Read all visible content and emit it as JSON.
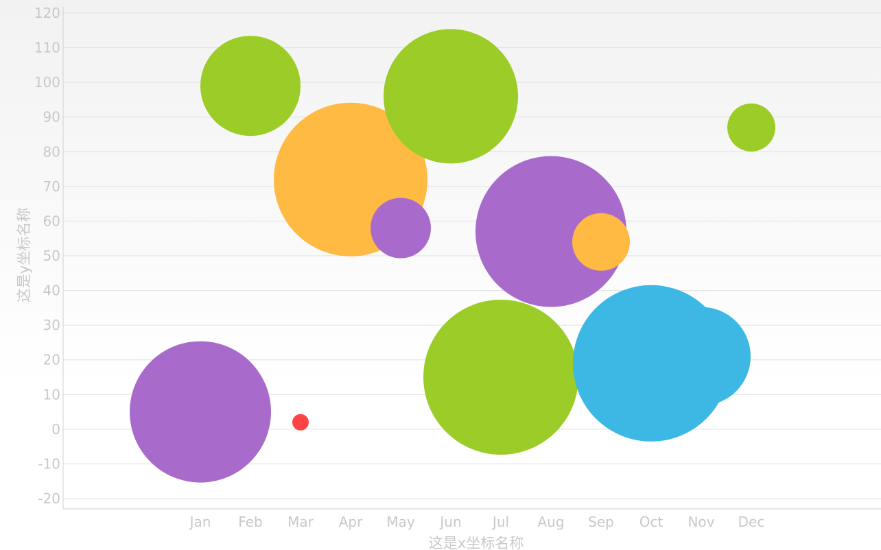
{
  "chart_data": {
    "type": "scatter",
    "subtype": "bubble",
    "xlabel": "这是x坐标名称",
    "ylabel": "这是y坐标名称",
    "categories": [
      "Jan",
      "Feb",
      "Mar",
      "Apr",
      "May",
      "Jun",
      "Jul",
      "Aug",
      "Sep",
      "Oct",
      "Nov",
      "Dec"
    ],
    "ylim": [
      -20,
      120
    ],
    "yticks": [
      -20,
      -10,
      0,
      10,
      20,
      30,
      40,
      50,
      60,
      70,
      80,
      90,
      100,
      110,
      120
    ],
    "grid": true,
    "legend": "none",
    "bubbles": [
      {
        "x": "Jan",
        "y": 5,
        "size": 103,
        "color": "#a86bcb"
      },
      {
        "x": "Feb",
        "y": 99,
        "size": 73,
        "color": "#9ccc27"
      },
      {
        "x": "Mar",
        "y": 2,
        "size": 12,
        "color": "#fe4444"
      },
      {
        "x": "Apr",
        "y": 72,
        "size": 112,
        "color": "#feba43"
      },
      {
        "x": "May",
        "y": 58,
        "size": 44,
        "color": "#a86bcb"
      },
      {
        "x": "Jun",
        "y": 96,
        "size": 98,
        "color": "#9ccc27"
      },
      {
        "x": "Jul",
        "y": 15,
        "size": 113,
        "color": "#9ccc27"
      },
      {
        "x": "Aug",
        "y": 57,
        "size": 110,
        "color": "#a86bcb"
      },
      {
        "x": "Sep",
        "y": 54,
        "size": 42,
        "color": "#feba43"
      },
      {
        "x": "Nov",
        "y": 21,
        "size": 72,
        "color": "#3db8e4"
      },
      {
        "x": "Oct",
        "y": 19,
        "size": 114,
        "color": "#3db8e4"
      },
      {
        "x": "Dec",
        "y": 87,
        "size": 35,
        "color": "#9ccc27"
      }
    ]
  }
}
